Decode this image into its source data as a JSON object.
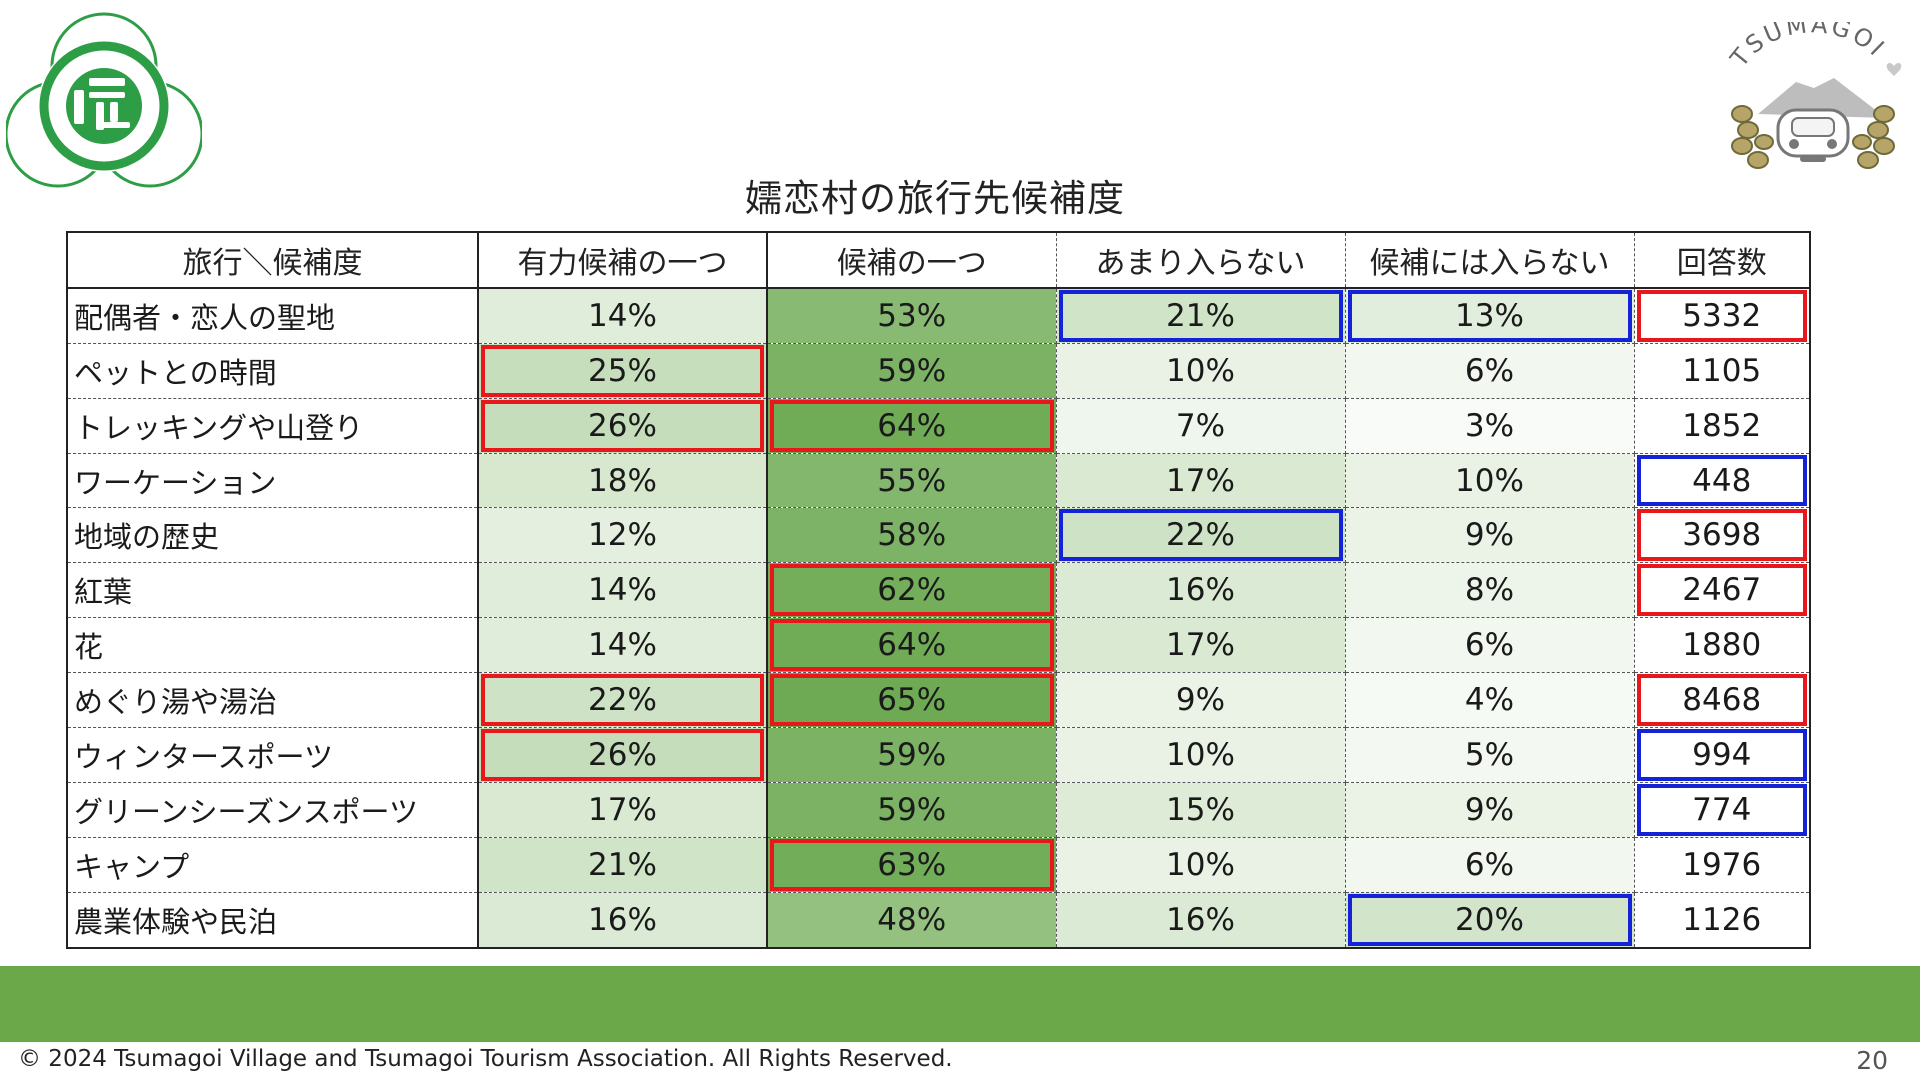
{
  "title": "嬬恋村の旅行先候補度",
  "logo_right_text": "TSUMAGOI",
  "headers": [
    "旅行＼候補度",
    "有力候補の一つ",
    "候補の一つ",
    "あまり入らない",
    "候補には入らない",
    "回答数"
  ],
  "rows": [
    {
      "label": "配偶者・恋人の聖地",
      "cells": [
        "14%",
        "53%",
        "21%",
        "13%",
        "5332"
      ]
    },
    {
      "label": "ペットとの時間",
      "cells": [
        "25%",
        "59%",
        "10%",
        "6%",
        "1105"
      ]
    },
    {
      "label": "トレッキングや山登り",
      "cells": [
        "26%",
        "64%",
        "7%",
        "3%",
        "1852"
      ]
    },
    {
      "label": "ワーケーション",
      "cells": [
        "18%",
        "55%",
        "17%",
        "10%",
        "448"
      ]
    },
    {
      "label": "地域の歴史",
      "cells": [
        "12%",
        "58%",
        "22%",
        "9%",
        "3698"
      ]
    },
    {
      "label": "紅葉",
      "cells": [
        "14%",
        "62%",
        "16%",
        "8%",
        "2467"
      ]
    },
    {
      "label": "花",
      "cells": [
        "14%",
        "64%",
        "17%",
        "6%",
        "1880"
      ]
    },
    {
      "label": "めぐり湯や湯治",
      "cells": [
        "22%",
        "65%",
        "9%",
        "4%",
        "8468"
      ]
    },
    {
      "label": "ウィンタースポーツ",
      "cells": [
        "26%",
        "59%",
        "10%",
        "5%",
        "994"
      ]
    },
    {
      "label": "グリーンシーズンスポーツ",
      "cells": [
        "17%",
        "59%",
        "15%",
        "9%",
        "774"
      ]
    },
    {
      "label": "キャンプ",
      "cells": [
        "21%",
        "63%",
        "10%",
        "6%",
        "1976"
      ]
    },
    {
      "label": "農業体験や民泊",
      "cells": [
        "16%",
        "48%",
        "16%",
        "20%",
        "1126"
      ]
    }
  ],
  "highlights": {
    "red": [
      [
        0,
        4
      ],
      [
        1,
        0
      ],
      [
        2,
        0
      ],
      [
        2,
        1
      ],
      [
        4,
        4
      ],
      [
        5,
        1
      ],
      [
        5,
        4
      ],
      [
        6,
        1
      ],
      [
        7,
        0
      ],
      [
        7,
        1
      ],
      [
        7,
        4
      ],
      [
        8,
        0
      ],
      [
        10,
        1
      ]
    ],
    "blue": [
      [
        0,
        2
      ],
      [
        0,
        3
      ],
      [
        3,
        4
      ],
      [
        4,
        2
      ],
      [
        8,
        4
      ],
      [
        9,
        4
      ],
      [
        11,
        3
      ]
    ]
  },
  "colors": {
    "highlight_red": "#e8171c",
    "highlight_blue": "#1422d8",
    "green_band": "#6aa84a",
    "logo_green": "#2e9e46"
  },
  "footer": "© 2024 Tsumagoi Village and Tsumagoi Tourism Association. All Rights Reserved.",
  "page_number": "20"
}
